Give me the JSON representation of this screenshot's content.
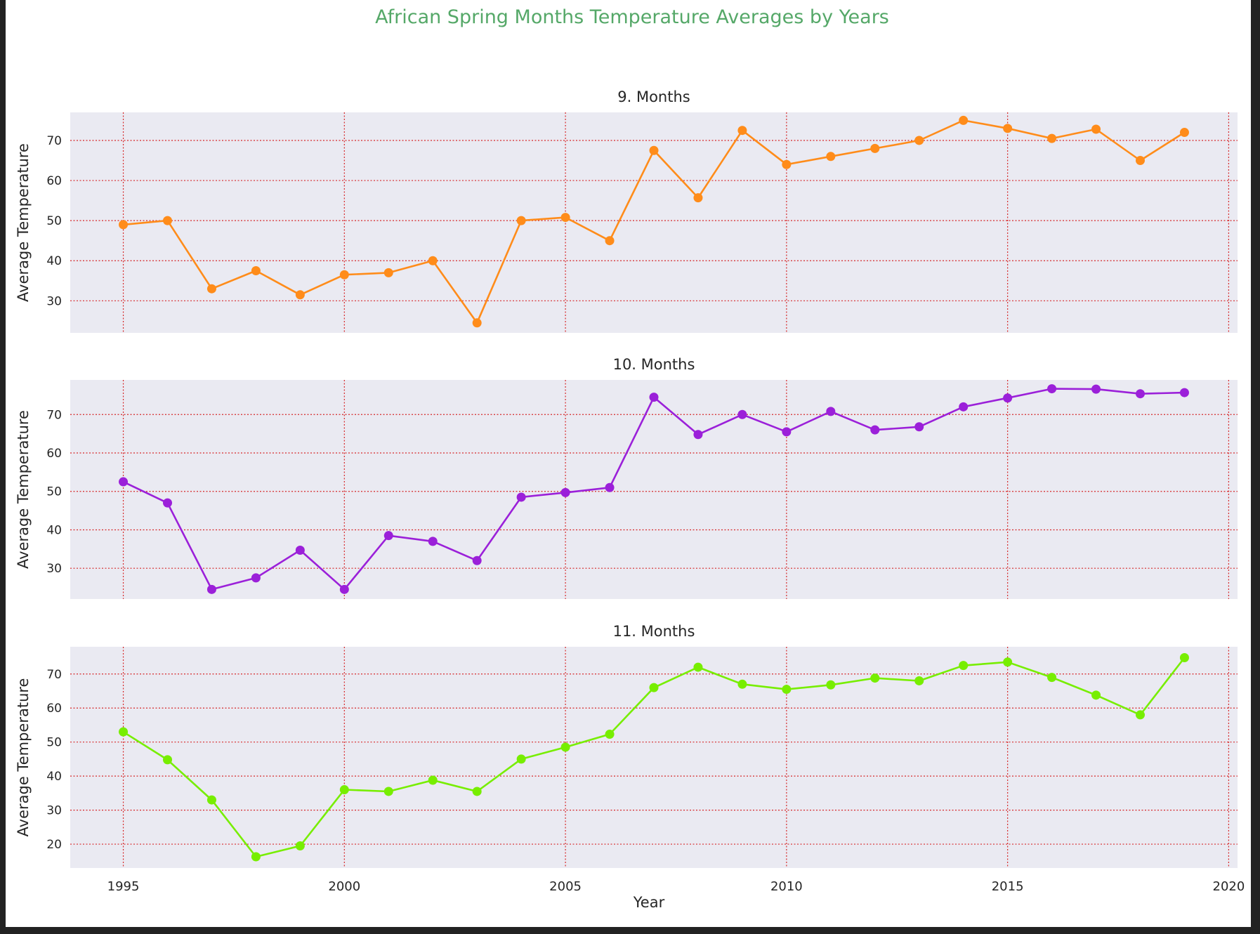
{
  "chart_data": {
    "type": "line",
    "title": "African Spring Months Temperature Averages by Years",
    "xlabel": "Year",
    "ylabel": "Average Temperature",
    "xlim": [
      1993.8,
      2020.2
    ],
    "xticks": [
      1995,
      2000,
      2005,
      2010,
      2015,
      2020
    ],
    "grid": true,
    "grid_style": "dotted",
    "colors": {
      "title": "#55a868",
      "plot_background": "#eaeaf2",
      "grid": "#d62728",
      "text": "#262626"
    },
    "x": [
      1995,
      1996,
      1997,
      1998,
      1999,
      2000,
      2001,
      2002,
      2003,
      2004,
      2005,
      2006,
      2007,
      2008,
      2009,
      2010,
      2011,
      2012,
      2013,
      2014,
      2015,
      2016,
      2017,
      2018,
      2019
    ],
    "panels": [
      {
        "title": "9. Months",
        "color": "#ff8c1a",
        "ylim": [
          22,
          77
        ],
        "yticks": [
          30,
          40,
          50,
          60,
          70
        ],
        "values": [
          49.0,
          50.0,
          33.0,
          37.5,
          31.5,
          36.5,
          37.0,
          40.0,
          24.5,
          50.0,
          50.8,
          45.0,
          67.5,
          55.7,
          72.5,
          64.0,
          66.0,
          68.0,
          70.0,
          75.0,
          73.0,
          70.5,
          72.8,
          65.0,
          72.0
        ]
      },
      {
        "title": "10. Months",
        "color": "#9b20d9",
        "ylim": [
          22,
          79
        ],
        "yticks": [
          30,
          40,
          50,
          60,
          70
        ],
        "values": [
          52.5,
          47.0,
          24.5,
          27.5,
          34.7,
          24.5,
          38.5,
          37.0,
          32.0,
          48.5,
          49.7,
          51.0,
          74.5,
          64.8,
          70.0,
          65.5,
          70.8,
          66.0,
          66.8,
          72.0,
          74.3,
          76.7,
          76.6,
          75.4,
          75.7
        ]
      },
      {
        "title": "11. Months",
        "color": "#77ee00",
        "ylim": [
          13,
          78
        ],
        "yticks": [
          20,
          30,
          40,
          50,
          60,
          70
        ],
        "values": [
          53.0,
          44.8,
          33.0,
          16.3,
          19.5,
          36.0,
          35.5,
          38.8,
          35.5,
          45.0,
          48.5,
          52.3,
          66.0,
          72.0,
          67.0,
          65.5,
          66.8,
          68.8,
          68.0,
          72.5,
          73.5,
          69.0,
          63.8,
          58.0,
          74.8
        ]
      }
    ]
  }
}
